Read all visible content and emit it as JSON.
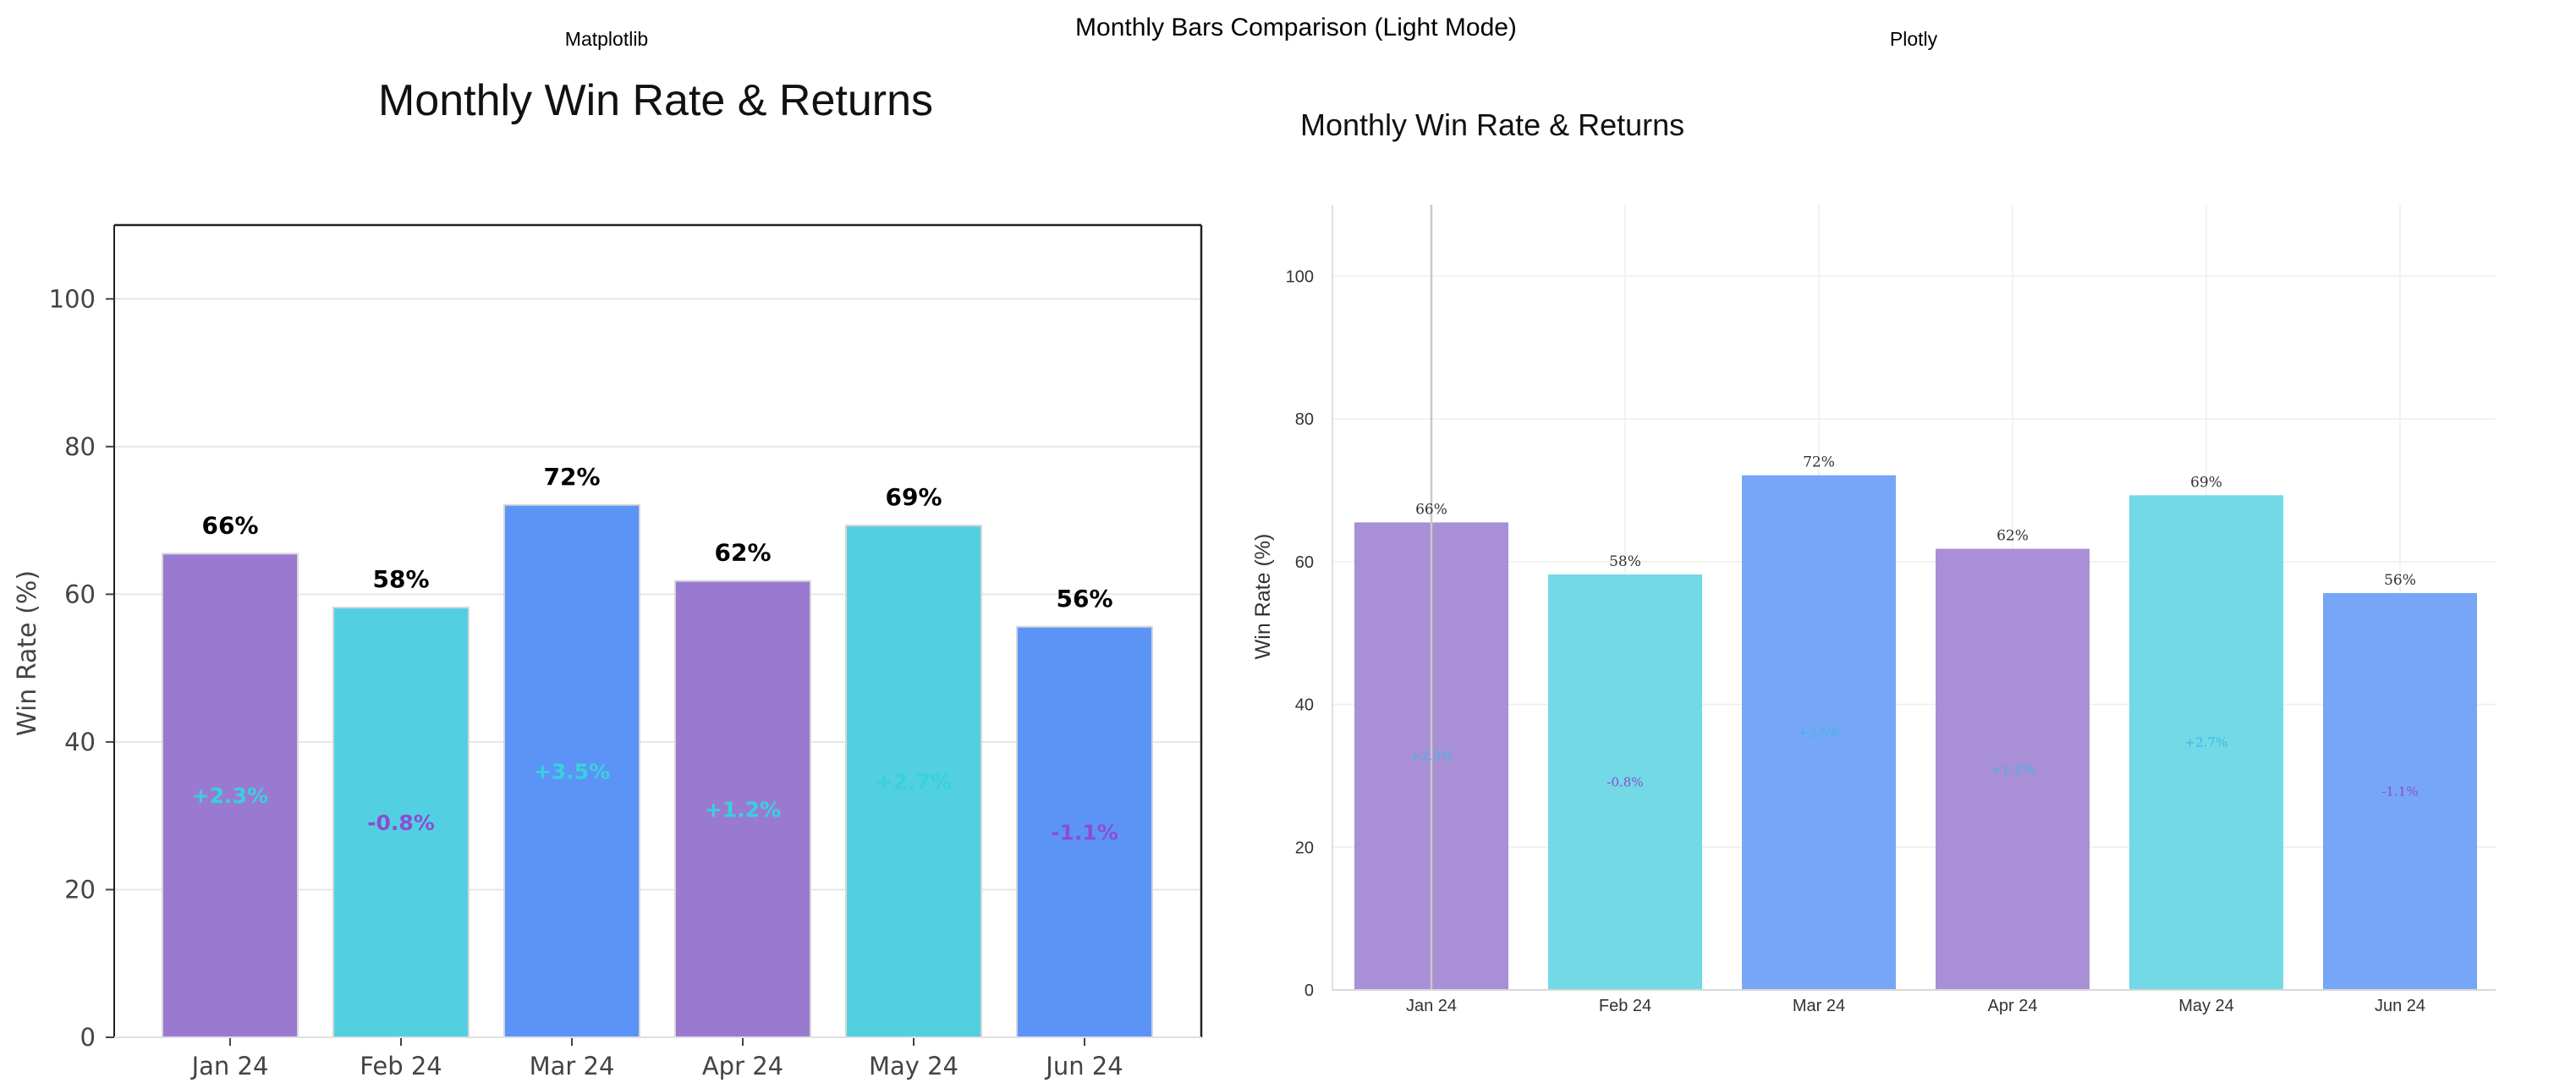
{
  "figure": {
    "suptitle": "Monthly Bars Comparison (Light Mode)",
    "left_label": "Matplotlib",
    "right_label": "Plotly"
  },
  "colors": {
    "purple": "#9a7ad0",
    "cyan": "#52d0e2",
    "blue": "#5b94f6",
    "return_purple": "#8a4fd0",
    "return_cyan": "#3ad0dc",
    "grid": "#e6e6e6"
  },
  "chart_data": [
    {
      "type": "bar",
      "panel": "Matplotlib",
      "title": "Monthly Win Rate & Returns",
      "xlabel": "",
      "ylabel": "Win Rate (%)",
      "ylim": [
        0,
        110
      ],
      "yticks": [
        0,
        20,
        40,
        60,
        80,
        100
      ],
      "grid": true,
      "categories": [
        "Jan 24",
        "Feb 24",
        "Mar 24",
        "Apr 24",
        "May 24",
        "Jun 24"
      ],
      "values": [
        65.5,
        58.2,
        72.1,
        61.8,
        69.3,
        55.6
      ],
      "value_labels": [
        "66%",
        "58%",
        "72%",
        "62%",
        "69%",
        "56%"
      ],
      "return_labels": [
        "+2.3%",
        "-0.8%",
        "+3.5%",
        "+1.2%",
        "+2.7%",
        "-1.1%"
      ],
      "bar_colors": [
        "#9a7ad0",
        "#52d0e2",
        "#5b94f6",
        "#9a7ad0",
        "#52d0e2",
        "#5b94f6"
      ],
      "return_colors": [
        "#3ad0dc",
        "#8a4fd0",
        "#3ad0dc",
        "#3ad0dc",
        "#3ad0dc",
        "#8a4fd0"
      ]
    },
    {
      "type": "bar",
      "panel": "Plotly",
      "title": "Monthly Win Rate & Returns",
      "xlabel": "",
      "ylabel": "Win Rate (%)",
      "ylim": [
        0,
        110
      ],
      "yticks": [
        0,
        20,
        40,
        60,
        80,
        100
      ],
      "grid": true,
      "categories": [
        "Jan 24",
        "Feb 24",
        "Mar 24",
        "Apr 24",
        "May 24",
        "Jun 24"
      ],
      "values": [
        65.5,
        58.2,
        72.1,
        61.8,
        69.3,
        55.6
      ],
      "value_labels": [
        "66%",
        "58%",
        "72%",
        "62%",
        "69%",
        "56%"
      ],
      "return_labels": [
        "+2.3%",
        "-0.8%",
        "+3.5%",
        "+1.2%",
        "+2.7%",
        "-1.1%"
      ],
      "bar_colors": [
        "#a98fd6",
        "#73d9e6",
        "#77a6f6",
        "#a98fd6",
        "#73d9e6",
        "#77a6f6"
      ],
      "return_colors": [
        "#3ab8e8",
        "#8a4fd0",
        "#3ab8e8",
        "#3ab8e8",
        "#3ab8e8",
        "#8a4fd0"
      ]
    }
  ]
}
